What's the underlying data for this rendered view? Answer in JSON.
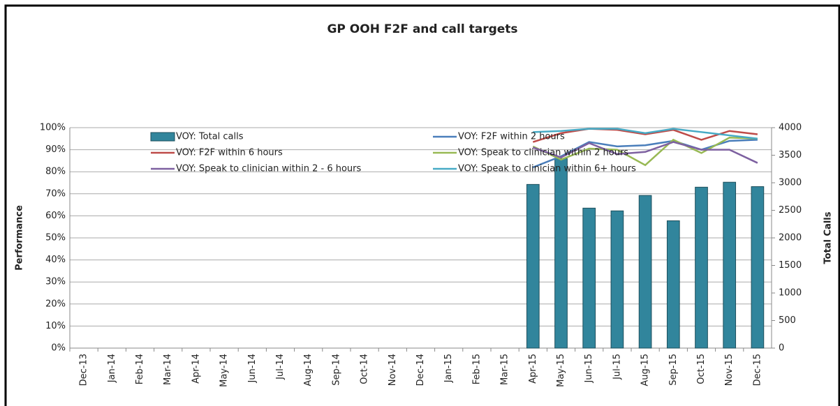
{
  "chart_data": {
    "type": "combo",
    "title": "GP OOH F2F and call targets",
    "y_label": "Performance",
    "y2_label": "Total Calls",
    "categories": [
      "Dec-13",
      "Jan-14",
      "Feb-14",
      "Mar-14",
      "Apr-14",
      "May-14",
      "Jun-14",
      "Jul-14",
      "Aug-14",
      "Sep-14",
      "Oct-14",
      "Nov-14",
      "Dec-14",
      "Jan-15",
      "Feb-15",
      "Mar-15",
      "Apr-15",
      "May-15",
      "Jun-15",
      "Jul-15",
      "Aug-15",
      "Sep-15",
      "Oct-15",
      "Nov-15",
      "Dec-15"
    ],
    "ylim": [
      0,
      100
    ],
    "yticks": [
      {
        "value": 0,
        "label": "0%"
      },
      {
        "value": 10,
        "label": "10%"
      },
      {
        "value": 20,
        "label": "20%"
      },
      {
        "value": 30,
        "label": "30%"
      },
      {
        "value": 40,
        "label": "40%"
      },
      {
        "value": 50,
        "label": "50%"
      },
      {
        "value": 60,
        "label": "60%"
      },
      {
        "value": 70,
        "label": "70%"
      },
      {
        "value": 80,
        "label": "80%"
      },
      {
        "value": 90,
        "label": "90%"
      },
      {
        "value": 100,
        "label": "100%"
      }
    ],
    "y2lim": [
      0,
      4000
    ],
    "y2ticks": [
      0,
      500,
      1000,
      1500,
      2000,
      2500,
      3000,
      3500,
      4000
    ],
    "grid": true,
    "series": [
      {
        "name": "VOY: Total calls",
        "type": "bar",
        "axis": "y2",
        "color": "#31859c",
        "values": [
          null,
          null,
          null,
          null,
          null,
          null,
          null,
          null,
          null,
          null,
          null,
          null,
          null,
          null,
          null,
          null,
          2970,
          3440,
          2540,
          2490,
          2770,
          2310,
          2920,
          3010,
          2930
        ]
      },
      {
        "name": "VOY: F2F within 2 hours",
        "type": "line",
        "color": "#4a7ebb",
        "values": [
          null,
          null,
          null,
          null,
          null,
          null,
          null,
          null,
          null,
          null,
          null,
          null,
          null,
          null,
          null,
          null,
          82,
          87,
          93.5,
          91.5,
          92,
          94,
          90,
          94,
          94.5
        ]
      },
      {
        "name": "VOY: F2F within 6 hours",
        "type": "line",
        "color": "#be4b48",
        "values": [
          null,
          null,
          null,
          null,
          null,
          null,
          null,
          null,
          null,
          null,
          null,
          null,
          null,
          null,
          null,
          null,
          93.5,
          97.5,
          99.5,
          99,
          97,
          99,
          94.5,
          98.5,
          97
        ]
      },
      {
        "name": "VOY: Speak to clinician within 2 hours",
        "type": "line",
        "color": "#98b954",
        "values": [
          null,
          null,
          null,
          null,
          null,
          null,
          null,
          null,
          null,
          null,
          null,
          null,
          null,
          null,
          null,
          null,
          91.5,
          85.5,
          90.5,
          90,
          83,
          94.5,
          88.5,
          95.5,
          95
        ]
      },
      {
        "name": "VOY: Speak to clinician within 2 - 6 hours",
        "type": "line",
        "color": "#7d60a0",
        "values": [
          null,
          null,
          null,
          null,
          null,
          null,
          null,
          null,
          null,
          null,
          null,
          null,
          null,
          null,
          null,
          null,
          91,
          86.5,
          93,
          88,
          89,
          93.5,
          90,
          90,
          84
        ]
      },
      {
        "name": "VOY: Speak to clinician within 6+ hours",
        "type": "line",
        "color": "#46aac5",
        "values": [
          null,
          null,
          null,
          null,
          null,
          null,
          null,
          null,
          null,
          null,
          null,
          null,
          null,
          null,
          null,
          null,
          98,
          98.5,
          99.5,
          99.5,
          97.5,
          99.5,
          98,
          96.5,
          95
        ]
      }
    ]
  }
}
